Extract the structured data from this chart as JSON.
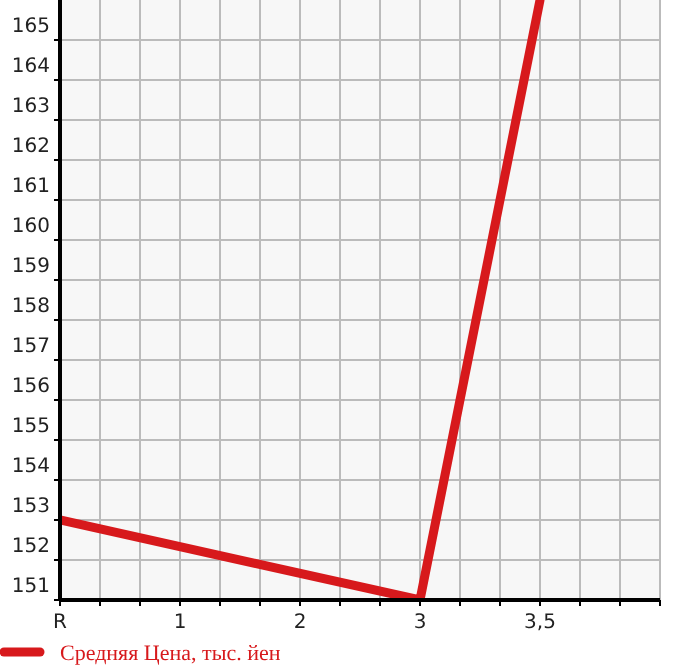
{
  "chart_data": {
    "type": "line",
    "categories": [
      "R",
      "1",
      "2",
      "3",
      "3,5",
      null
    ],
    "series": [
      {
        "name": "Средняя Цена, тыс. йен",
        "color": "#d7191c",
        "values": [
          153,
          null,
          null,
          151,
          166,
          null
        ]
      }
    ],
    "ylim": [
      151,
      166
    ],
    "yticks": [
      151,
      152,
      153,
      154,
      155,
      156,
      157,
      158,
      159,
      160,
      161,
      162,
      163,
      164,
      165
    ],
    "grid": true,
    "legend": "bottom",
    "marker": "none",
    "line_style": "solid"
  }
}
